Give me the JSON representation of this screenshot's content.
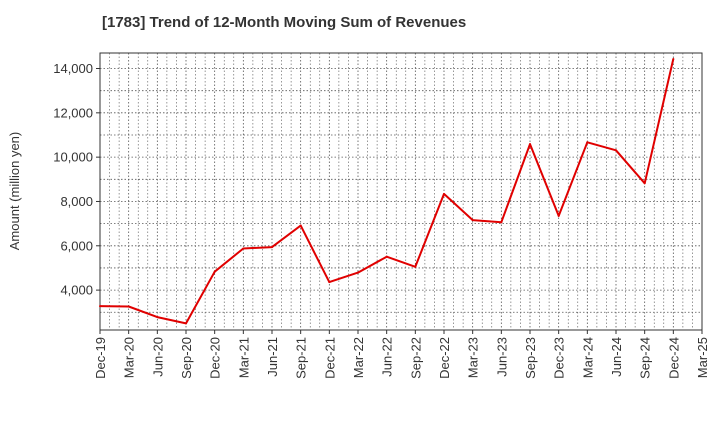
{
  "chart_data": {
    "type": "line",
    "title": "[1783]  Trend of 12-Month Moving Sum of Revenues",
    "xlabel": "",
    "ylabel": "Amount (million yen)",
    "categories": [
      "Dec-19",
      "Mar-20",
      "Jun-20",
      "Sep-20",
      "Dec-20",
      "Mar-21",
      "Jun-21",
      "Sep-21",
      "Dec-21",
      "Mar-22",
      "Jun-22",
      "Sep-22",
      "Dec-22",
      "Mar-23",
      "Jun-23",
      "Sep-23",
      "Dec-23",
      "Mar-24",
      "Jun-24",
      "Sep-24",
      "Dec-24",
      "Mar-25"
    ],
    "series": [
      {
        "name": "",
        "values": [
          3280,
          3260,
          2780,
          2500,
          4830,
          5880,
          5940,
          6910,
          4360,
          4790,
          5510,
          5050,
          8340,
          7160,
          7060,
          10590,
          7350,
          10670,
          10310,
          8820,
          14430,
          null
        ]
      }
    ],
    "ylim": [
      2200,
      14700
    ],
    "yticks": [
      4000,
      6000,
      8000,
      10000,
      12000,
      14000
    ],
    "ytick_labels": [
      "4,000",
      "6,000",
      "8,000",
      "10,000",
      "12,000",
      "14,000"
    ],
    "grid": true,
    "line_color": "#e00000",
    "grid_color": "#555555"
  }
}
